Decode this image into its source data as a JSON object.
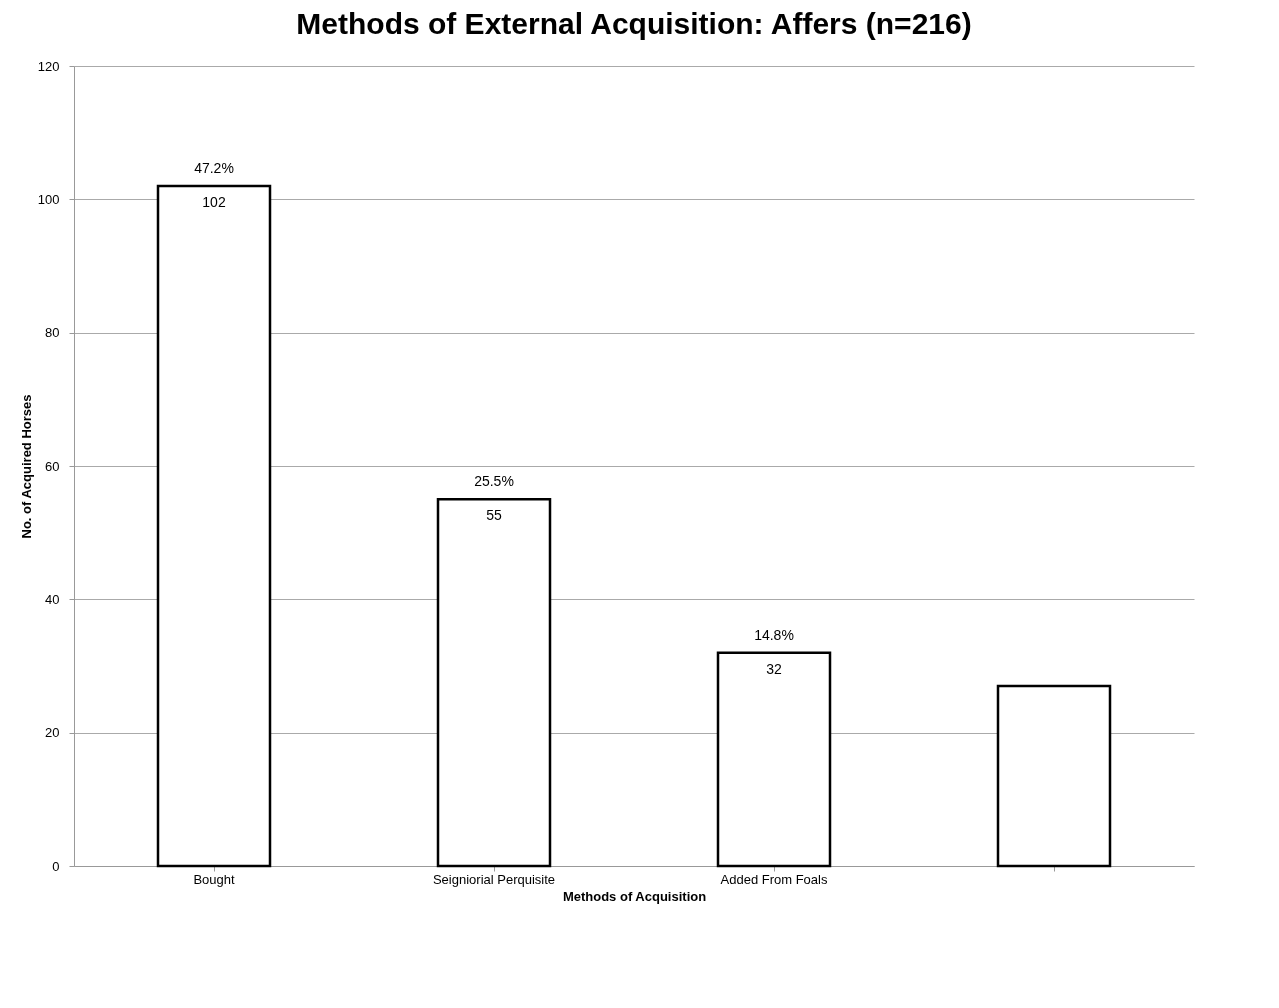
{
  "chart_data": {
    "type": "bar",
    "title": "Methods of External Acquisition: Affers (n=216)",
    "xlabel": "Methods of Acquisition",
    "ylabel": "No. of Acquired Horses",
    "categories": [
      "Bought",
      "Seigniorial Perquisite",
      "Added From Foals",
      null
    ],
    "values": [
      102,
      55,
      32,
      27
    ],
    "value_labels": [
      "102",
      "55",
      "32",
      null
    ],
    "color": "#ffffff",
    "ylim": [
      0,
      120
    ],
    "yticks": [
      0,
      20,
      40,
      60,
      80,
      100,
      120
    ],
    "grid": "y",
    "annotations": [
      {
        "text": "47.2%",
        "x": "Bought",
        "y": 102
      },
      {
        "text": "25.5%",
        "x": "Seigniorial Perquisite",
        "y": 55
      },
      {
        "text": "14.8%",
        "x": "Added From Foals",
        "y": 32
      }
    ]
  }
}
